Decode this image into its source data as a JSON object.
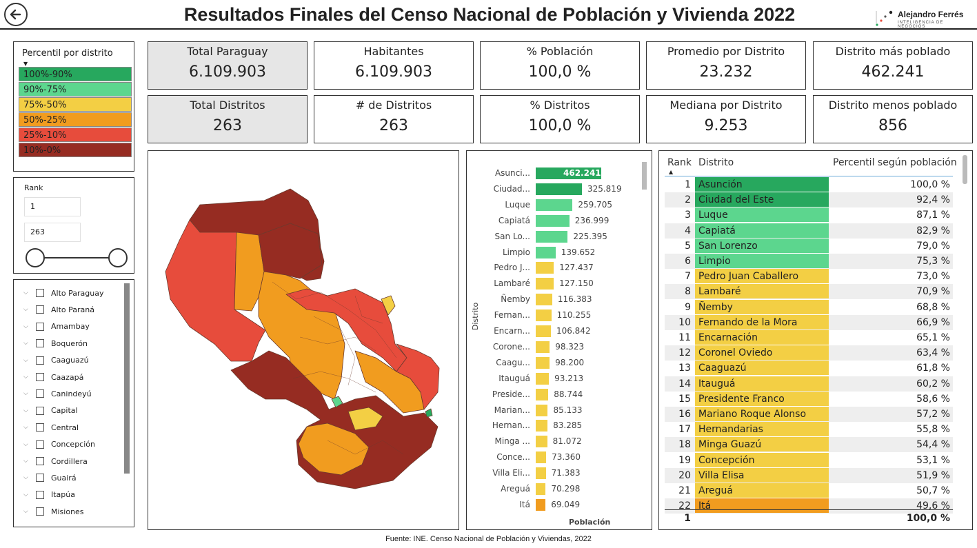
{
  "header": {
    "title": "Resultados Finales del Censo Nacional de Población y Vivienda 2022",
    "brand_name": "Alejandro Ferrés",
    "brand_sub": "INTELIGENCIA DE NEGOCIOS"
  },
  "legend": {
    "title": "Percentil por distrito",
    "items": [
      {
        "label": "100%-90%",
        "color": "#27a85e"
      },
      {
        "label": "90%-75%",
        "color": "#5cd68e"
      },
      {
        "label": "75%-50%",
        "color": "#f3cf44"
      },
      {
        "label": "50%-25%",
        "color": "#f19c1f"
      },
      {
        "label": "25%-10%",
        "color": "#e74c3c"
      },
      {
        "label": "10%-0%",
        "color": "#962c22"
      }
    ]
  },
  "rank_slicer": {
    "label": "Rank",
    "min": "1",
    "max": "263"
  },
  "departments": [
    "Alto Paraguay",
    "Alto Paraná",
    "Amambay",
    "Boquerón",
    "Caaguazú",
    "Caazapá",
    "Canindeyú",
    "Capital",
    "Central",
    "Concepción",
    "Cordillera",
    "Guairá",
    "Itapúa",
    "Misiones"
  ],
  "kpis": [
    {
      "label": "Total Paraguay",
      "value": "6.109.903",
      "grey": true
    },
    {
      "label": "Habitantes",
      "value": "6.109.903",
      "grey": false
    },
    {
      "label": "% Población",
      "value": "100,0 %",
      "grey": false
    },
    {
      "label": "Promedio por Distrito",
      "value": "23.232",
      "grey": false
    },
    {
      "label": "Distrito más poblado",
      "value": "462.241",
      "grey": false
    },
    {
      "label": "Total Distritos",
      "value": "263",
      "grey": true
    },
    {
      "label": "# de Distritos",
      "value": "263",
      "grey": false
    },
    {
      "label": "% Distritos",
      "value": "100,0 %",
      "grey": false
    },
    {
      "label": "Mediana por Distrito",
      "value": "9.253",
      "grey": false
    },
    {
      "label": "Distrito menos poblado",
      "value": "856",
      "grey": false
    }
  ],
  "chart_data": {
    "type": "bar",
    "orientation": "horizontal",
    "ylabel": "Distrito",
    "xlabel": "Población",
    "categories": [
      "Asunci...",
      "Ciudad...",
      "Luque",
      "Capiatá",
      "San Lo...",
      "Limpio",
      "Pedro J...",
      "Lambaré",
      "Ñemby",
      "Fernan...",
      "Encarn...",
      "Corone...",
      "Caagu...",
      "Itauguá",
      "Preside...",
      "Marian...",
      "Hernan...",
      "Minga ...",
      "Conce...",
      "Villa Eli...",
      "Areguá",
      "Itá"
    ],
    "values": [
      462241,
      325819,
      259705,
      236999,
      225395,
      139652,
      127437,
      127150,
      116383,
      110255,
      106842,
      98323,
      98200,
      93213,
      88744,
      85133,
      83285,
      81072,
      73360,
      71383,
      70298,
      69049
    ],
    "value_labels": [
      "462.241",
      "325.819",
      "259.705",
      "236.999",
      "225.395",
      "139.652",
      "127.437",
      "127.150",
      "116.383",
      "110.255",
      "106.842",
      "98.323",
      "98.200",
      "93.213",
      "88.744",
      "85.133",
      "83.285",
      "81.072",
      "73.360",
      "71.383",
      "70.298",
      "69.049"
    ],
    "colors": [
      "#27a85e",
      "#27a85e",
      "#5cd68e",
      "#5cd68e",
      "#5cd68e",
      "#5cd68e",
      "#f3cf44",
      "#f3cf44",
      "#f3cf44",
      "#f3cf44",
      "#f3cf44",
      "#f3cf44",
      "#f3cf44",
      "#f3cf44",
      "#f3cf44",
      "#f3cf44",
      "#f3cf44",
      "#f3cf44",
      "#f3cf44",
      "#f3cf44",
      "#f3cf44",
      "#f19c1f"
    ]
  },
  "table": {
    "headers": {
      "rank": "Rank",
      "distrito": "Distrito",
      "percentil": "Percentil según población"
    },
    "rows": [
      {
        "rank": "1",
        "distrito": "Asunción",
        "pct": "100,0 %",
        "color": "#27a85e"
      },
      {
        "rank": "2",
        "distrito": "Ciudad del Este",
        "pct": "92,4 %",
        "color": "#27a85e"
      },
      {
        "rank": "3",
        "distrito": "Luque",
        "pct": "87,1 %",
        "color": "#5cd68e"
      },
      {
        "rank": "4",
        "distrito": "Capiatá",
        "pct": "82,9 %",
        "color": "#5cd68e"
      },
      {
        "rank": "5",
        "distrito": "San Lorenzo",
        "pct": "79,0 %",
        "color": "#5cd68e"
      },
      {
        "rank": "6",
        "distrito": "Limpio",
        "pct": "75,3 %",
        "color": "#5cd68e"
      },
      {
        "rank": "7",
        "distrito": "Pedro Juan Caballero",
        "pct": "73,0 %",
        "color": "#f3cf44"
      },
      {
        "rank": "8",
        "distrito": "Lambaré",
        "pct": "70,9 %",
        "color": "#f3cf44"
      },
      {
        "rank": "9",
        "distrito": "Ñemby",
        "pct": "68,8 %",
        "color": "#f3cf44"
      },
      {
        "rank": "10",
        "distrito": "Fernando de la Mora",
        "pct": "66,9 %",
        "color": "#f3cf44"
      },
      {
        "rank": "11",
        "distrito": "Encarnación",
        "pct": "65,1 %",
        "color": "#f3cf44"
      },
      {
        "rank": "12",
        "distrito": "Coronel Oviedo",
        "pct": "63,4 %",
        "color": "#f3cf44"
      },
      {
        "rank": "13",
        "distrito": "Caaguazú",
        "pct": "61,8 %",
        "color": "#f3cf44"
      },
      {
        "rank": "14",
        "distrito": "Itauguá",
        "pct": "60,2 %",
        "color": "#f3cf44"
      },
      {
        "rank": "15",
        "distrito": "Presidente Franco",
        "pct": "58,6 %",
        "color": "#f3cf44"
      },
      {
        "rank": "16",
        "distrito": "Mariano Roque Alonso",
        "pct": "57,2 %",
        "color": "#f3cf44"
      },
      {
        "rank": "17",
        "distrito": "Hernandarias",
        "pct": "55,8 %",
        "color": "#f3cf44"
      },
      {
        "rank": "18",
        "distrito": "Minga Guazú",
        "pct": "54,4 %",
        "color": "#f3cf44"
      },
      {
        "rank": "19",
        "distrito": "Concepción",
        "pct": "53,1 %",
        "color": "#f3cf44"
      },
      {
        "rank": "20",
        "distrito": "Villa Elisa",
        "pct": "51,9 %",
        "color": "#f3cf44"
      },
      {
        "rank": "21",
        "distrito": "Areguá",
        "pct": "50,7 %",
        "color": "#f3cf44"
      },
      {
        "rank": "22",
        "distrito": "Itá",
        "pct": "49,6 %",
        "color": "#f19c1f"
      }
    ],
    "total": {
      "rank": "1",
      "pct": "100,0 %"
    }
  },
  "footer": {
    "source": "Fuente: INE. Censo Nacional de Población y Viviendas, 2022"
  },
  "map": {
    "colors": {
      "dark": "#962c22",
      "red": "#e74c3c",
      "orange": "#f19c1f",
      "yellow": "#f3cf44",
      "green": "#5cd68e"
    }
  }
}
